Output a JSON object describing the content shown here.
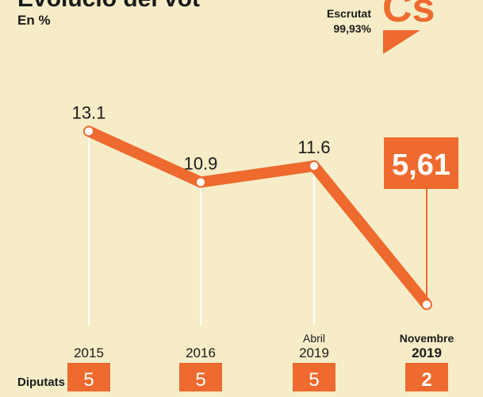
{
  "chart_data": {
    "type": "line",
    "title": "Evolució del vot",
    "subtitle": "En %",
    "status_label": "Escrutat",
    "status_value": "99,93%",
    "logo": "Cs",
    "categories": [
      [
        "2015"
      ],
      [
        "2016"
      ],
      [
        "Abril",
        "2019"
      ],
      [
        "Novembre",
        "2019"
      ]
    ],
    "series": [
      {
        "name": null,
        "color": "#ee6a2f",
        "values": [
          13.1,
          10.9,
          11.6,
          5.61
        ],
        "value_labels": [
          "13.1",
          "10.9",
          "11.6",
          "5,61"
        ]
      }
    ],
    "ylim": [
      4.7,
      15
    ],
    "seats_label": "Diputats",
    "seats": [
      5,
      5,
      5,
      2
    ]
  }
}
